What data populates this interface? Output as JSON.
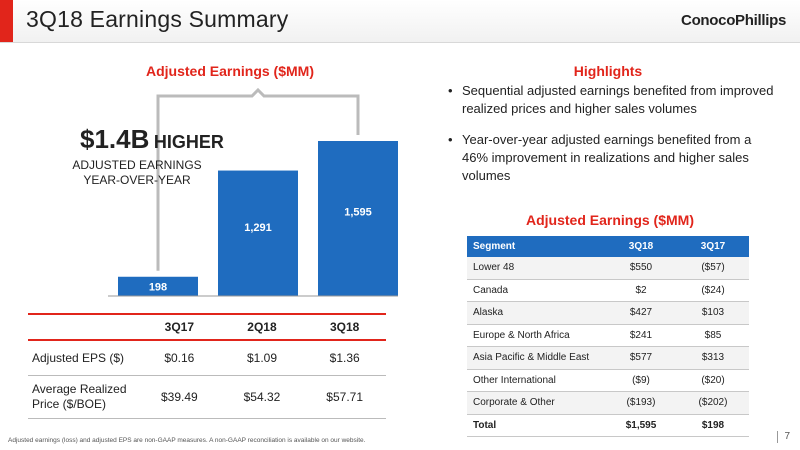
{
  "header": {
    "title": "3Q18 Earnings Summary",
    "logo_text": "ConocoPhillips"
  },
  "left": {
    "chart_title": "Adjusted Earnings ($MM)",
    "callout_amount": "$1.4B",
    "callout_word": "HIGHER",
    "callout_sub_1": "ADJUSTED EARNINGS",
    "callout_sub_2": "YEAR-OVER-YEAR",
    "table": {
      "headers": [
        "3Q17",
        "2Q18",
        "3Q18"
      ],
      "rows": [
        {
          "label": "Adjusted EPS ($)",
          "values": [
            "$0.16",
            "$1.09",
            "$1.36"
          ]
        },
        {
          "label": "Average Realized Price ($/BOE)",
          "values": [
            "$39.49",
            "$54.32",
            "$57.71"
          ]
        }
      ]
    }
  },
  "chart_data": {
    "type": "bar",
    "categories": [
      "3Q17",
      "2Q18",
      "3Q18"
    ],
    "values": [
      198,
      1291,
      1595
    ],
    "value_labels": [
      "198",
      "1,291",
      "1,595"
    ],
    "title": "Adjusted Earnings ($MM)",
    "ylim": [
      0,
      1800
    ],
    "grid": false,
    "bar_color": "#1f6cbf"
  },
  "highlights": {
    "title": "Highlights",
    "bullets": [
      "Sequential adjusted earnings benefited from improved realized prices and higher sales volumes",
      "Year-over-year adjusted earnings benefited from a 46% improvement in realizations and higher sales volumes"
    ]
  },
  "segments": {
    "title": "Adjusted Earnings ($MM)",
    "headers": [
      "Segment",
      "3Q18",
      "3Q17"
    ],
    "rows": [
      [
        "Lower 48",
        "$550",
        "($57)"
      ],
      [
        "Canada",
        "$2",
        "($24)"
      ],
      [
        "Alaska",
        "$427",
        "$103"
      ],
      [
        "Europe & North Africa",
        "$241",
        "$85"
      ],
      [
        "Asia Pacific & Middle East",
        "$577",
        "$313"
      ],
      [
        "Other International",
        "($9)",
        "($20)"
      ],
      [
        "Corporate & Other",
        "($193)",
        "($202)"
      ],
      [
        "Total",
        "$1,595",
        "$198"
      ]
    ]
  },
  "footer": {
    "footnote": "Adjusted earnings (loss) and adjusted EPS are non-GAAP measures. A non-GAAP reconciliation is available on our website.",
    "page_number": "7"
  },
  "colors": {
    "accent_red": "#e1251b",
    "brand_blue": "#1f6cbf"
  }
}
